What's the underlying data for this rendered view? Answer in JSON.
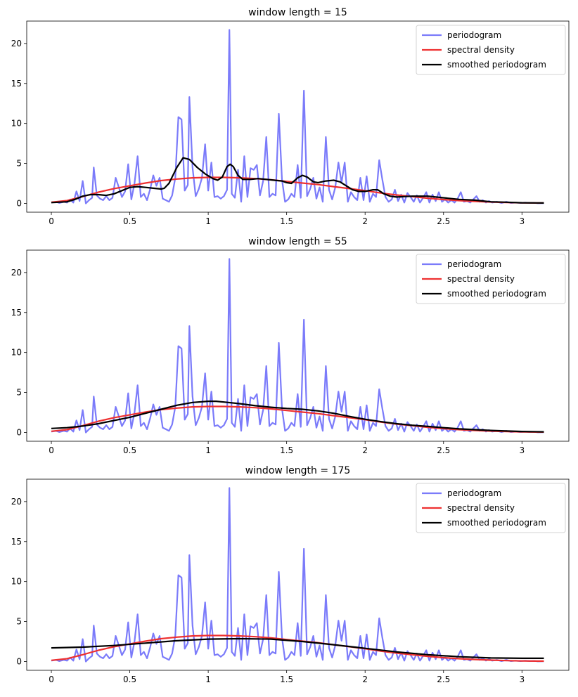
{
  "periodogram": {
    "pts": [
      [
        0.0,
        0.1
      ],
      [
        0.03,
        0.2
      ],
      [
        0.05,
        0.05
      ],
      [
        0.08,
        0.2
      ],
      [
        0.1,
        0.1
      ],
      [
        0.12,
        0.5
      ],
      [
        0.14,
        0.1
      ],
      [
        0.16,
        1.5
      ],
      [
        0.18,
        0.3
      ],
      [
        0.2,
        2.8
      ],
      [
        0.22,
        0.0
      ],
      [
        0.24,
        0.4
      ],
      [
        0.26,
        0.7
      ],
      [
        0.27,
        4.5
      ],
      [
        0.29,
        1.0
      ],
      [
        0.31,
        0.6
      ],
      [
        0.33,
        0.4
      ],
      [
        0.35,
        0.9
      ],
      [
        0.37,
        0.4
      ],
      [
        0.39,
        0.7
      ],
      [
        0.41,
        3.2
      ],
      [
        0.43,
        2.0
      ],
      [
        0.45,
        0.8
      ],
      [
        0.47,
        1.5
      ],
      [
        0.49,
        4.9
      ],
      [
        0.51,
        0.5
      ],
      [
        0.53,
        2.5
      ],
      [
        0.55,
        5.9
      ],
      [
        0.57,
        0.8
      ],
      [
        0.59,
        1.2
      ],
      [
        0.61,
        0.4
      ],
      [
        0.63,
        1.8
      ],
      [
        0.65,
        3.5
      ],
      [
        0.67,
        2.2
      ],
      [
        0.69,
        3.2
      ],
      [
        0.71,
        0.6
      ],
      [
        0.73,
        0.4
      ],
      [
        0.75,
        0.2
      ],
      [
        0.77,
        1.0
      ],
      [
        0.79,
        3.2
      ],
      [
        0.81,
        10.8
      ],
      [
        0.83,
        10.5
      ],
      [
        0.85,
        1.6
      ],
      [
        0.87,
        2.3
      ],
      [
        0.88,
        13.3
      ],
      [
        0.9,
        4.5
      ],
      [
        0.92,
        0.9
      ],
      [
        0.94,
        1.8
      ],
      [
        0.96,
        3.2
      ],
      [
        0.98,
        7.4
      ],
      [
        1.0,
        1.6
      ],
      [
        1.02,
        5.1
      ],
      [
        1.04,
        0.8
      ],
      [
        1.06,
        0.9
      ],
      [
        1.08,
        0.6
      ],
      [
        1.1,
        0.9
      ],
      [
        1.12,
        1.7
      ],
      [
        1.135,
        21.7
      ],
      [
        1.15,
        1.2
      ],
      [
        1.17,
        0.7
      ],
      [
        1.19,
        4.2
      ],
      [
        1.21,
        0.2
      ],
      [
        1.23,
        5.9
      ],
      [
        1.25,
        0.8
      ],
      [
        1.27,
        4.4
      ],
      [
        1.29,
        4.2
      ],
      [
        1.31,
        4.8
      ],
      [
        1.33,
        1.0
      ],
      [
        1.35,
        2.8
      ],
      [
        1.37,
        8.3
      ],
      [
        1.39,
        0.8
      ],
      [
        1.41,
        1.2
      ],
      [
        1.43,
        1.0
      ],
      [
        1.45,
        11.2
      ],
      [
        1.47,
        3.0
      ],
      [
        1.49,
        0.2
      ],
      [
        1.51,
        0.5
      ],
      [
        1.53,
        1.2
      ],
      [
        1.55,
        0.8
      ],
      [
        1.57,
        4.8
      ],
      [
        1.59,
        0.7
      ],
      [
        1.61,
        14.1
      ],
      [
        1.63,
        0.9
      ],
      [
        1.65,
        1.8
      ],
      [
        1.67,
        3.2
      ],
      [
        1.69,
        0.6
      ],
      [
        1.71,
        2.0
      ],
      [
        1.73,
        0.2
      ],
      [
        1.75,
        8.3
      ],
      [
        1.77,
        1.7
      ],
      [
        1.79,
        0.5
      ],
      [
        1.81,
        2.0
      ],
      [
        1.83,
        5.1
      ],
      [
        1.85,
        2.6
      ],
      [
        1.87,
        5.1
      ],
      [
        1.89,
        0.2
      ],
      [
        1.91,
        1.4
      ],
      [
        1.93,
        0.8
      ],
      [
        1.95,
        0.4
      ],
      [
        1.97,
        3.2
      ],
      [
        1.99,
        0.4
      ],
      [
        2.01,
        3.4
      ],
      [
        2.03,
        0.2
      ],
      [
        2.05,
        1.2
      ],
      [
        2.07,
        0.8
      ],
      [
        2.09,
        5.4
      ],
      [
        2.11,
        3.0
      ],
      [
        2.13,
        0.8
      ],
      [
        2.15,
        0.2
      ],
      [
        2.17,
        0.5
      ],
      [
        2.19,
        1.7
      ],
      [
        2.21,
        0.3
      ],
      [
        2.23,
        1.1
      ],
      [
        2.25,
        0.1
      ],
      [
        2.27,
        1.3
      ],
      [
        2.29,
        0.8
      ],
      [
        2.31,
        0.2
      ],
      [
        2.33,
        1.0
      ],
      [
        2.35,
        0.1
      ],
      [
        2.37,
        0.7
      ],
      [
        2.39,
        1.4
      ],
      [
        2.41,
        0.1
      ],
      [
        2.43,
        1.1
      ],
      [
        2.45,
        0.3
      ],
      [
        2.47,
        1.4
      ],
      [
        2.49,
        0.2
      ],
      [
        2.51,
        0.5
      ],
      [
        2.53,
        0.1
      ],
      [
        2.55,
        0.4
      ],
      [
        2.57,
        0.1
      ],
      [
        2.59,
        0.6
      ],
      [
        2.61,
        1.4
      ],
      [
        2.63,
        0.2
      ],
      [
        2.65,
        0.3
      ],
      [
        2.67,
        0.1
      ],
      [
        2.69,
        0.5
      ],
      [
        2.71,
        0.9
      ],
      [
        2.73,
        0.2
      ],
      [
        2.75,
        0.4
      ],
      [
        2.77,
        0.1
      ],
      [
        2.79,
        0.3
      ],
      [
        2.81,
        0.1
      ],
      [
        2.84,
        0.2
      ],
      [
        2.87,
        0.05
      ],
      [
        2.9,
        0.2
      ],
      [
        2.93,
        0.05
      ],
      [
        2.96,
        0.1
      ],
      [
        2.99,
        0.05
      ],
      [
        3.02,
        0.1
      ],
      [
        3.05,
        0.05
      ],
      [
        3.08,
        0.08
      ],
      [
        3.1,
        0.02
      ],
      [
        3.14,
        0.03
      ]
    ]
  },
  "spectral_density": {
    "pts": [
      [
        0.0,
        0.15
      ],
      [
        0.1,
        0.35
      ],
      [
        0.2,
        0.85
      ],
      [
        0.3,
        1.4
      ],
      [
        0.4,
        1.85
      ],
      [
        0.5,
        2.2
      ],
      [
        0.6,
        2.55
      ],
      [
        0.7,
        2.85
      ],
      [
        0.8,
        3.05
      ],
      [
        0.9,
        3.2
      ],
      [
        1.0,
        3.25
      ],
      [
        1.1,
        3.25
      ],
      [
        1.2,
        3.2
      ],
      [
        1.3,
        3.1
      ],
      [
        1.4,
        2.95
      ],
      [
        1.5,
        2.75
      ],
      [
        1.6,
        2.55
      ],
      [
        1.7,
        2.35
      ],
      [
        1.8,
        2.1
      ],
      [
        1.9,
        1.85
      ],
      [
        2.0,
        1.6
      ],
      [
        2.1,
        1.3
      ],
      [
        2.2,
        1.05
      ],
      [
        2.3,
        0.85
      ],
      [
        2.4,
        0.65
      ],
      [
        2.5,
        0.48
      ],
      [
        2.6,
        0.35
      ],
      [
        2.7,
        0.25
      ],
      [
        2.8,
        0.17
      ],
      [
        2.9,
        0.11
      ],
      [
        3.0,
        0.07
      ],
      [
        3.1,
        0.05
      ],
      [
        3.14,
        0.05
      ]
    ]
  },
  "smoothed": {
    "w15": [
      [
        0.0,
        0.1
      ],
      [
        0.1,
        0.2
      ],
      [
        0.15,
        0.5
      ],
      [
        0.2,
        0.9
      ],
      [
        0.25,
        1.1
      ],
      [
        0.3,
        1.1
      ],
      [
        0.35,
        1.0
      ],
      [
        0.4,
        1.2
      ],
      [
        0.45,
        1.6
      ],
      [
        0.5,
        2.0
      ],
      [
        0.55,
        2.1
      ],
      [
        0.6,
        2.0
      ],
      [
        0.65,
        1.9
      ],
      [
        0.7,
        1.8
      ],
      [
        0.72,
        1.9
      ],
      [
        0.75,
        2.5
      ],
      [
        0.8,
        4.5
      ],
      [
        0.84,
        5.7
      ],
      [
        0.88,
        5.5
      ],
      [
        0.93,
        4.5
      ],
      [
        0.98,
        3.7
      ],
      [
        1.03,
        3.1
      ],
      [
        1.06,
        2.9
      ],
      [
        1.09,
        3.3
      ],
      [
        1.12,
        4.6
      ],
      [
        1.14,
        4.9
      ],
      [
        1.16,
        4.6
      ],
      [
        1.19,
        3.5
      ],
      [
        1.22,
        3.0
      ],
      [
        1.27,
        3.0
      ],
      [
        1.32,
        3.1
      ],
      [
        1.37,
        3.0
      ],
      [
        1.42,
        2.9
      ],
      [
        1.47,
        2.8
      ],
      [
        1.5,
        2.6
      ],
      [
        1.53,
        2.5
      ],
      [
        1.57,
        3.2
      ],
      [
        1.6,
        3.5
      ],
      [
        1.63,
        3.3
      ],
      [
        1.67,
        2.7
      ],
      [
        1.7,
        2.6
      ],
      [
        1.75,
        2.8
      ],
      [
        1.8,
        2.9
      ],
      [
        1.84,
        2.7
      ],
      [
        1.88,
        2.2
      ],
      [
        1.92,
        1.7
      ],
      [
        1.96,
        1.5
      ],
      [
        2.0,
        1.5
      ],
      [
        2.05,
        1.7
      ],
      [
        2.08,
        1.7
      ],
      [
        2.12,
        1.2
      ],
      [
        2.16,
        0.9
      ],
      [
        2.2,
        0.8
      ],
      [
        2.3,
        0.9
      ],
      [
        2.4,
        0.9
      ],
      [
        2.5,
        0.7
      ],
      [
        2.6,
        0.5
      ],
      [
        2.7,
        0.4
      ],
      [
        2.8,
        0.2
      ],
      [
        2.9,
        0.15
      ],
      [
        3.0,
        0.08
      ],
      [
        3.14,
        0.05
      ]
    ],
    "w55": [
      [
        0.0,
        0.5
      ],
      [
        0.1,
        0.6
      ],
      [
        0.2,
        0.8
      ],
      [
        0.3,
        1.1
      ],
      [
        0.4,
        1.5
      ],
      [
        0.5,
        1.9
      ],
      [
        0.6,
        2.4
      ],
      [
        0.7,
        2.9
      ],
      [
        0.8,
        3.4
      ],
      [
        0.9,
        3.75
      ],
      [
        1.0,
        3.9
      ],
      [
        1.05,
        3.9
      ],
      [
        1.1,
        3.8
      ],
      [
        1.2,
        3.6
      ],
      [
        1.3,
        3.35
      ],
      [
        1.4,
        3.15
      ],
      [
        1.5,
        3.0
      ],
      [
        1.6,
        2.9
      ],
      [
        1.7,
        2.7
      ],
      [
        1.8,
        2.4
      ],
      [
        1.9,
        2.0
      ],
      [
        2.0,
        1.65
      ],
      [
        2.1,
        1.35
      ],
      [
        2.2,
        1.1
      ],
      [
        2.3,
        0.9
      ],
      [
        2.4,
        0.75
      ],
      [
        2.5,
        0.6
      ],
      [
        2.6,
        0.45
      ],
      [
        2.7,
        0.35
      ],
      [
        2.8,
        0.25
      ],
      [
        2.9,
        0.18
      ],
      [
        3.0,
        0.12
      ],
      [
        3.14,
        0.08
      ]
    ],
    "w175": [
      [
        0.0,
        1.7
      ],
      [
        0.2,
        1.8
      ],
      [
        0.4,
        2.0
      ],
      [
        0.6,
        2.3
      ],
      [
        0.8,
        2.6
      ],
      [
        1.0,
        2.8
      ],
      [
        1.2,
        2.85
      ],
      [
        1.4,
        2.8
      ],
      [
        1.6,
        2.5
      ],
      [
        1.8,
        2.1
      ],
      [
        2.0,
        1.65
      ],
      [
        2.2,
        1.2
      ],
      [
        2.4,
        0.85
      ],
      [
        2.6,
        0.6
      ],
      [
        2.8,
        0.45
      ],
      [
        3.0,
        0.4
      ],
      [
        3.14,
        0.4
      ]
    ]
  },
  "chart_data": [
    {
      "type": "line",
      "title": "window length = 15",
      "xlim": [
        -0.157,
        3.299
      ],
      "ylim": [
        -1.1,
        22.8
      ],
      "xticks": [
        0.0,
        0.5,
        1.0,
        1.5,
        2.0,
        2.5,
        3.0
      ],
      "yticks": [
        0,
        5,
        10,
        15,
        20
      ],
      "legend": [
        "periodogram",
        "spectral density",
        "smoothed periodogram"
      ],
      "legend_loc": "upper right",
      "smooth_key": "w15"
    },
    {
      "type": "line",
      "title": "window length = 55",
      "xlim": [
        -0.157,
        3.299
      ],
      "ylim": [
        -1.1,
        22.8
      ],
      "xticks": [
        0.0,
        0.5,
        1.0,
        1.5,
        2.0,
        2.5,
        3.0
      ],
      "yticks": [
        0,
        5,
        10,
        15,
        20
      ],
      "legend": [
        "periodogram",
        "spectral density",
        "smoothed periodogram"
      ],
      "legend_loc": "upper right",
      "smooth_key": "w55"
    },
    {
      "type": "line",
      "title": "window length = 175",
      "xlim": [
        -0.157,
        3.299
      ],
      "ylim": [
        -1.1,
        22.8
      ],
      "xticks": [
        0.0,
        0.5,
        1.0,
        1.5,
        2.0,
        2.5,
        3.0
      ],
      "yticks": [
        0,
        5,
        10,
        15,
        20
      ],
      "legend": [
        "periodogram",
        "spectral density",
        "smoothed periodogram"
      ],
      "legend_loc": "upper right",
      "smooth_key": "w175"
    }
  ],
  "colors": {
    "periodogram": "#7b7bfa",
    "spectral_density": "#ee3030",
    "smoothed": "#000000"
  }
}
